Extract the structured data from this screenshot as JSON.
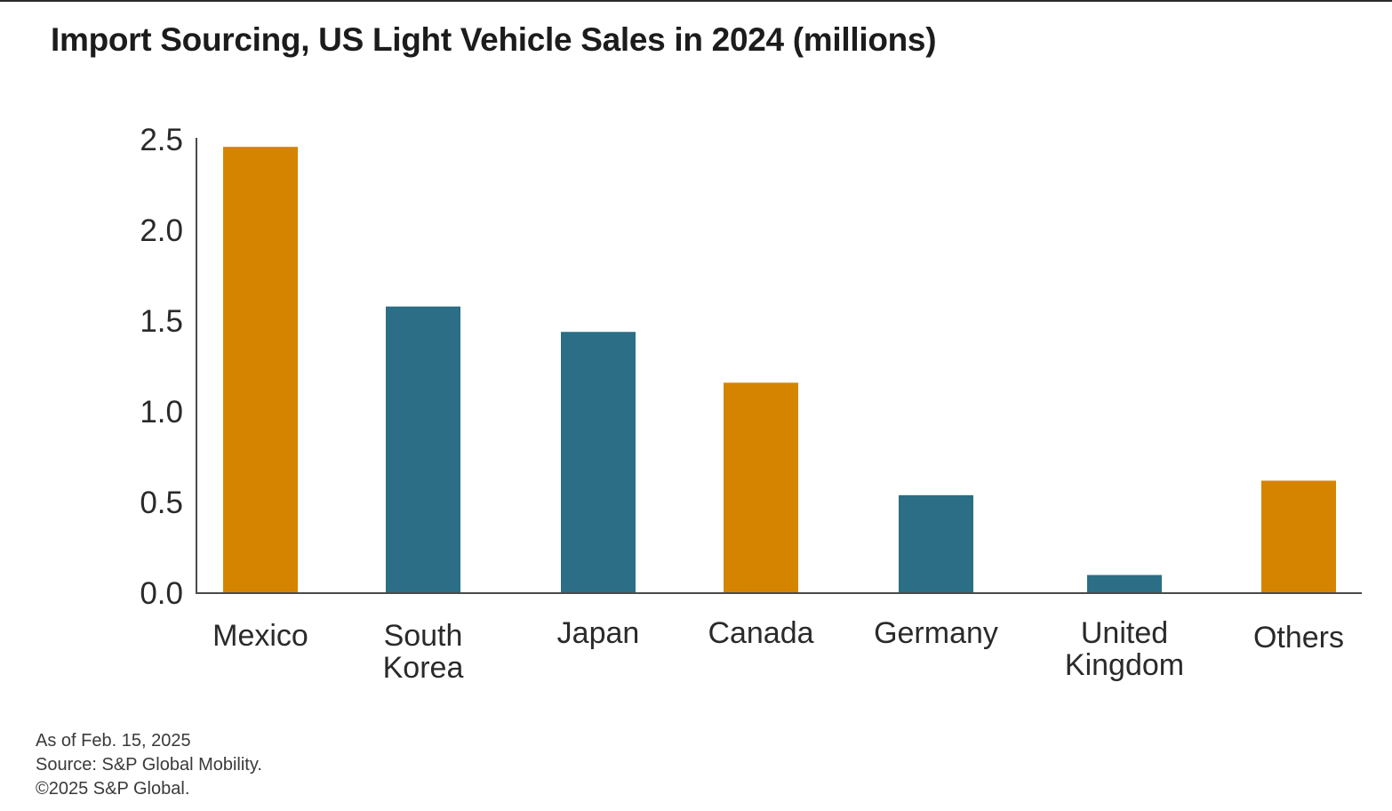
{
  "chart_data": {
    "type": "bar",
    "title": "Import Sourcing, US Light Vehicle Sales in 2024 (millions)",
    "xlabel": "",
    "ylabel": "",
    "ylim": [
      0,
      2.5
    ],
    "yticks": [
      "0.0",
      "0.5",
      "1.0",
      "1.5",
      "2.0",
      "2.5"
    ],
    "categories": [
      [
        "Mexico"
      ],
      [
        "South",
        "Korea"
      ],
      [
        "Japan"
      ],
      [
        "Canada"
      ],
      [
        "Germany"
      ],
      [
        "United",
        "Kingdom"
      ],
      [
        "Others"
      ]
    ],
    "values": [
      2.46,
      1.58,
      1.44,
      1.16,
      0.54,
      0.1,
      0.62
    ],
    "highlight": [
      true,
      false,
      false,
      true,
      false,
      false,
      true
    ],
    "colors": {
      "highlight": "#d58400",
      "default": "#2b6e86"
    },
    "grid": false,
    "legend": "none"
  },
  "footnotes": {
    "as_of": "As of Feb. 15, 2025",
    "source": "Source: S&P Global Mobility.",
    "copyright": "©2025 S&P Global."
  }
}
